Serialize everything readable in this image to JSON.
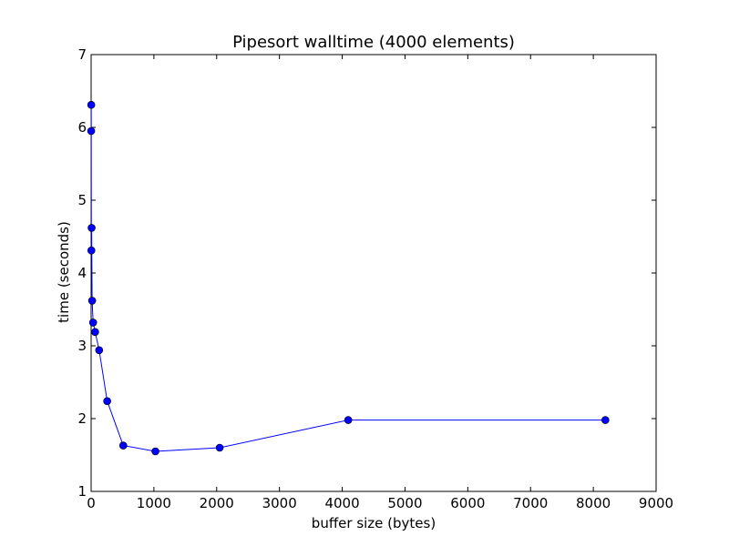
{
  "chart_data": {
    "type": "line",
    "title": "Pipesort walltime (4000 elements)",
    "xlabel": "buffer size (bytes)",
    "ylabel": "time (seconds)",
    "xlim": [
      0,
      9000
    ],
    "ylim": [
      1,
      7
    ],
    "x_ticks": [
      0,
      1000,
      2000,
      3000,
      4000,
      5000,
      6000,
      7000,
      8000,
      9000
    ],
    "y_ticks": [
      1,
      2,
      3,
      4,
      5,
      6,
      7
    ],
    "grid": false,
    "series": [
      {
        "color": "#0000ff",
        "marker": "circle",
        "x": [
          1,
          2,
          4,
          8,
          16,
          32,
          64,
          128,
          256,
          512,
          1024,
          2048,
          4096,
          8192
        ],
        "y": [
          5.95,
          6.31,
          4.31,
          4.62,
          3.62,
          3.32,
          3.19,
          2.94,
          2.24,
          1.63,
          1.55,
          1.6,
          1.98,
          1.98
        ]
      }
    ]
  }
}
